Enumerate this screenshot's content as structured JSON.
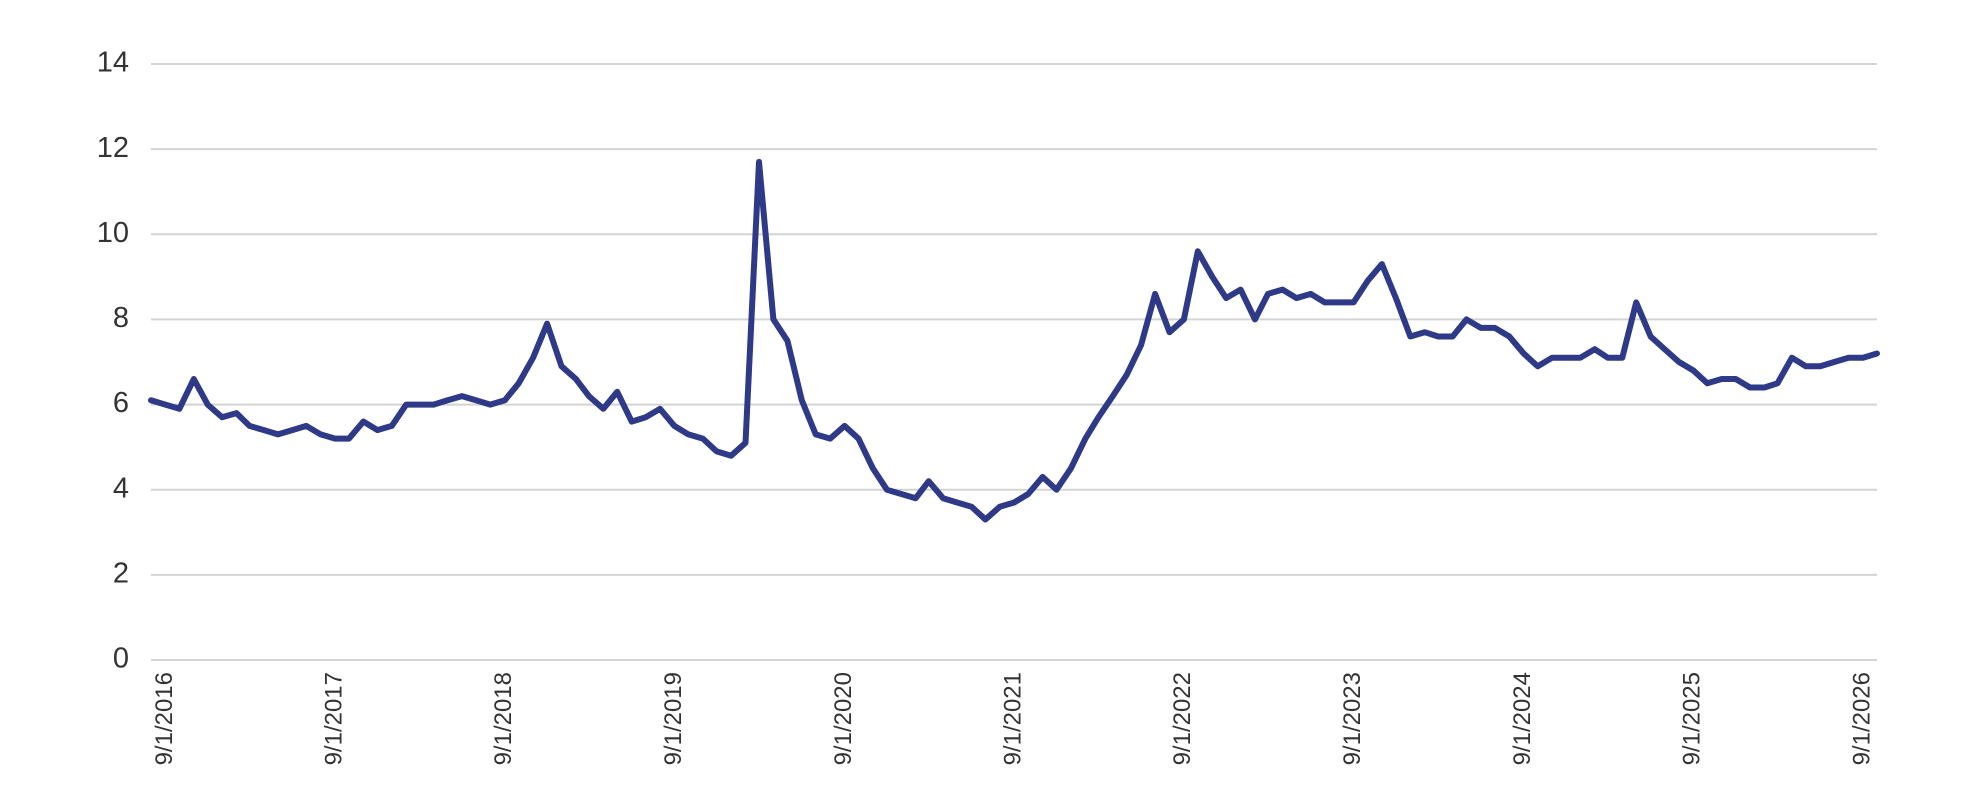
{
  "chart_data": {
    "type": "line",
    "x": [
      "8/1/2016",
      "9/1/2016",
      "10/1/2016",
      "11/1/2016",
      "12/1/2016",
      "1/1/2017",
      "2/1/2017",
      "3/1/2017",
      "4/1/2017",
      "5/1/2017",
      "6/1/2017",
      "7/1/2017",
      "8/1/2017",
      "9/1/2017",
      "10/1/2017",
      "11/1/2017",
      "12/1/2017",
      "1/1/2018",
      "2/1/2018",
      "3/1/2018",
      "4/1/2018",
      "5/1/2018",
      "6/1/2018",
      "7/1/2018",
      "8/1/2018",
      "9/1/2018",
      "10/1/2018",
      "11/1/2018",
      "12/1/2018",
      "1/1/2019",
      "2/1/2019",
      "3/1/2019",
      "4/1/2019",
      "5/1/2019",
      "6/1/2019",
      "7/1/2019",
      "8/1/2019",
      "9/1/2019",
      "10/1/2019",
      "11/1/2019",
      "12/1/2019",
      "1/1/2020",
      "2/1/2020",
      "3/1/2020",
      "4/1/2020",
      "5/1/2020",
      "6/1/2020",
      "7/1/2020",
      "8/1/2020",
      "9/1/2020",
      "10/1/2020",
      "11/1/2020",
      "12/1/2020",
      "1/1/2021",
      "2/1/2021",
      "3/1/2021",
      "4/1/2021",
      "5/1/2021",
      "6/1/2021",
      "7/1/2021",
      "8/1/2021",
      "9/1/2021",
      "10/1/2021",
      "11/1/2021",
      "12/1/2021",
      "1/1/2022",
      "2/1/2022",
      "3/1/2022",
      "4/1/2022",
      "5/1/2022",
      "6/1/2022",
      "7/1/2022",
      "8/1/2022",
      "9/1/2022",
      "10/1/2022",
      "11/1/2022",
      "12/1/2022",
      "1/1/2023",
      "2/1/2023",
      "3/1/2023",
      "4/1/2023",
      "5/1/2023",
      "6/1/2023",
      "7/1/2023",
      "8/1/2023",
      "9/1/2023",
      "10/1/2023",
      "11/1/2023",
      "12/1/2023",
      "1/1/2024",
      "2/1/2024",
      "3/1/2024",
      "4/1/2024",
      "5/1/2024",
      "6/1/2024",
      "7/1/2024",
      "8/1/2024",
      "9/1/2024",
      "10/1/2024",
      "11/1/2024",
      "12/1/2024",
      "1/1/2025",
      "2/1/2025",
      "3/1/2025",
      "4/1/2025",
      "5/1/2025",
      "6/1/2025",
      "7/1/2025",
      "8/1/2025",
      "9/1/2025",
      "10/1/2025",
      "11/1/2025",
      "12/1/2025",
      "1/1/2026",
      "2/1/2026",
      "3/1/2026",
      "4/1/2026",
      "5/1/2026",
      "6/1/2026",
      "7/1/2026",
      "8/1/2026",
      "9/1/2026",
      "10/1/2026"
    ],
    "series": [
      {
        "color": "#2e3a87",
        "values": [
          6.1,
          6.0,
          5.9,
          6.6,
          6.0,
          5.7,
          5.8,
          5.5,
          5.4,
          5.3,
          5.4,
          5.5,
          5.3,
          5.2,
          5.2,
          5.6,
          5.4,
          5.5,
          6.0,
          6.0,
          6.0,
          6.1,
          6.2,
          6.1,
          6.0,
          6.1,
          6.5,
          7.1,
          7.9,
          6.9,
          6.6,
          6.2,
          5.9,
          6.3,
          5.6,
          5.7,
          5.9,
          5.5,
          5.3,
          5.2,
          4.9,
          4.8,
          5.1,
          11.7,
          8.0,
          7.5,
          6.1,
          5.3,
          5.2,
          5.5,
          5.2,
          4.5,
          4.0,
          3.9,
          3.8,
          4.2,
          3.8,
          3.7,
          3.6,
          3.3,
          3.6,
          3.7,
          3.9,
          4.3,
          4.0,
          4.5,
          5.2,
          5.7,
          6.2,
          6.7,
          7.4,
          8.6,
          7.7,
          8.0,
          9.6,
          9.0,
          8.5,
          8.7,
          8.0,
          8.6,
          8.7,
          8.5,
          8.6,
          8.4,
          8.4,
          8.4,
          8.9,
          9.3,
          8.5,
          7.6,
          7.7,
          7.6,
          7.6,
          8.0,
          7.8,
          7.8,
          7.6,
          7.2,
          6.9,
          7.1,
          7.1,
          7.1,
          7.3,
          7.1,
          7.1,
          8.4,
          7.6,
          7.3,
          7.0,
          6.8,
          6.5,
          6.6,
          6.6,
          6.4,
          6.4,
          6.5,
          7.1,
          6.9,
          6.9,
          7.0,
          7.1,
          7.1,
          7.2
        ]
      }
    ],
    "xlim": [
      "8/1/2016",
      "10/1/2026"
    ],
    "xticks": [
      "9/1/2016",
      "9/1/2017",
      "9/1/2018",
      "9/1/2019",
      "9/1/2020",
      "9/1/2021",
      "9/1/2022",
      "9/1/2023",
      "9/1/2024",
      "9/1/2025",
      "9/1/2026"
    ],
    "ylim": [
      0,
      14
    ],
    "yticks": [
      0,
      2,
      4,
      6,
      8,
      10,
      12,
      14
    ],
    "grid": true
  }
}
